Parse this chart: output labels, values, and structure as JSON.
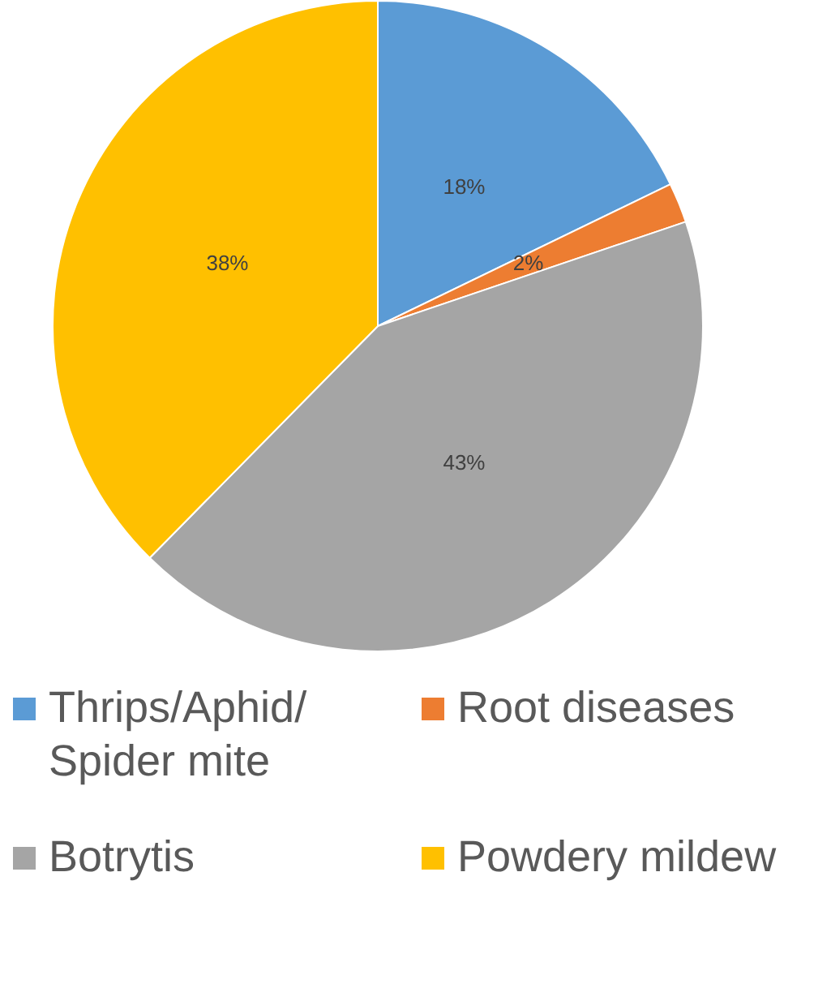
{
  "chart_data": {
    "type": "pie",
    "categories": [
      "Thrips/Aphid/ Spider mite",
      "Root diseases",
      "Botrytis",
      "Powdery mildew"
    ],
    "values": [
      18,
      2,
      43,
      38
    ],
    "colors": [
      "#5b9bd5",
      "#ed7d31",
      "#a5a5a5",
      "#ffc000"
    ],
    "value_labels": [
      "18%",
      "2%",
      "43%",
      "38%"
    ],
    "legend": "bottom"
  }
}
